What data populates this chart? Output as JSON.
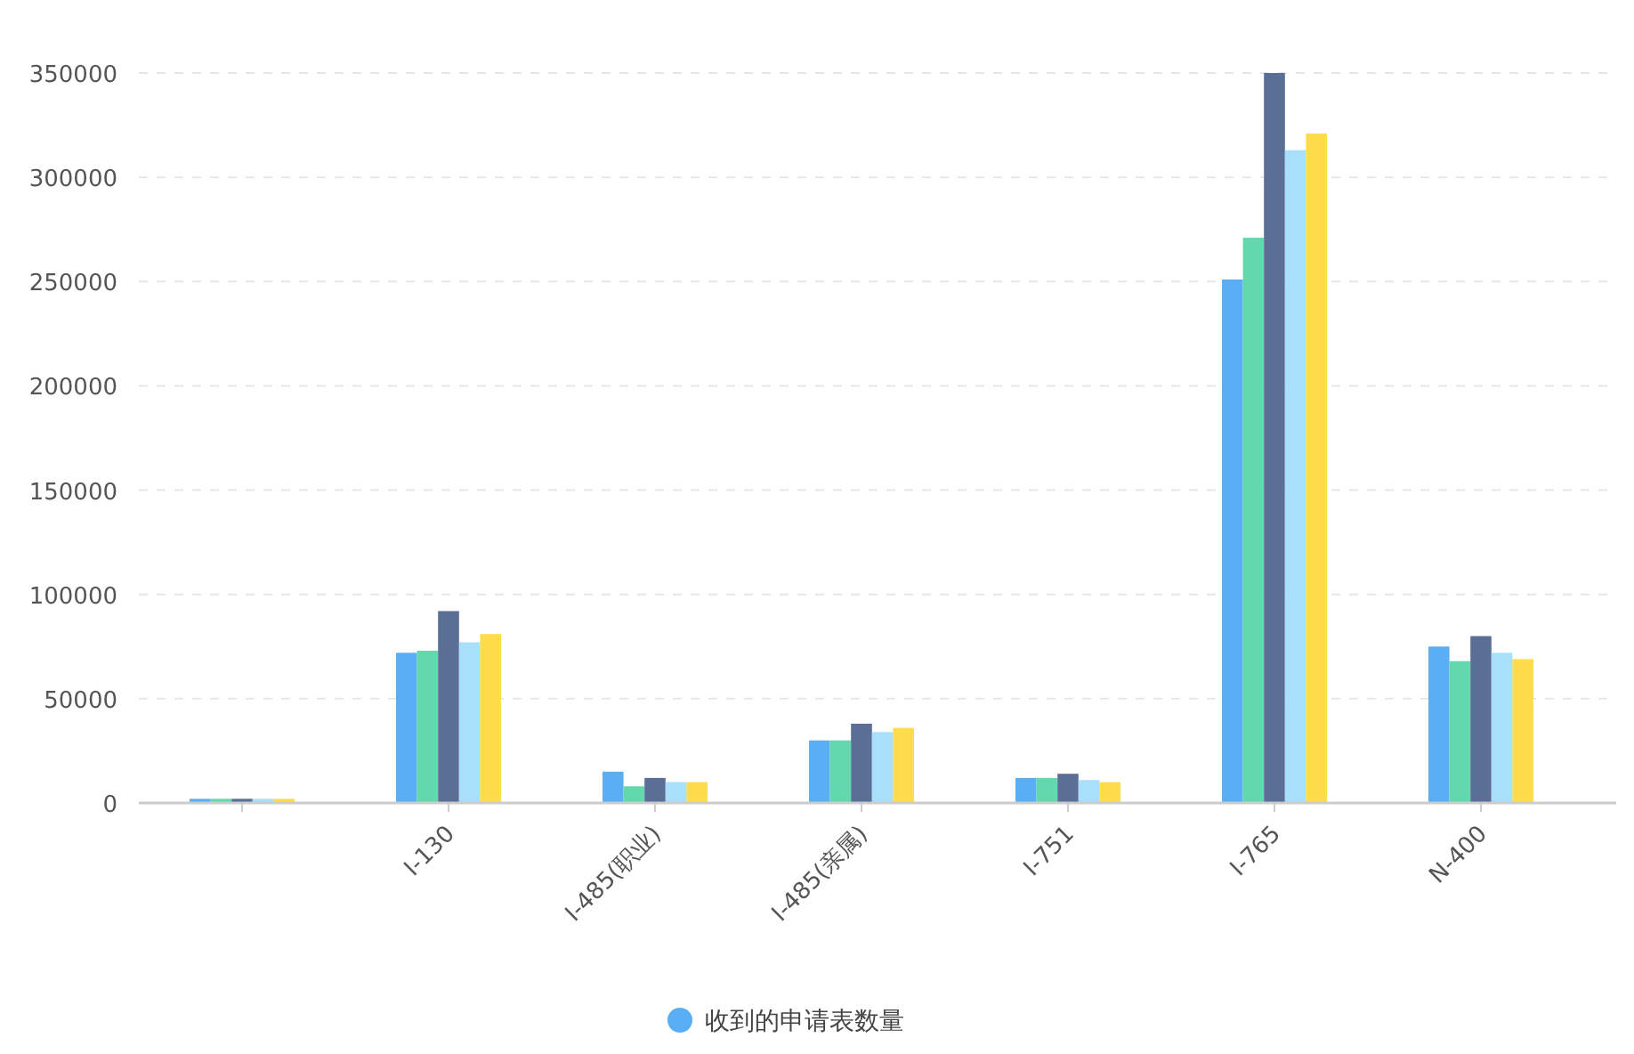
{
  "chart_data": {
    "type": "bar",
    "categories": [
      null,
      "I-130",
      "I-485(职业)",
      "I-485(亲属)",
      "I-751",
      "I-765",
      "N-400"
    ],
    "series": [
      {
        "name": "收到的申请表数量",
        "color": "#5aaef3",
        "values": [
          2000,
          72000,
          15000,
          30000,
          12000,
          251000,
          75000
        ]
      },
      {
        "color": "#62d9ad",
        "values": [
          2000,
          73000,
          8000,
          30000,
          12000,
          271000,
          68000
        ]
      },
      {
        "color": "#5b6e96",
        "values": [
          2000,
          92000,
          12000,
          38000,
          14000,
          350000,
          80000
        ]
      },
      {
        "color": "#a8dffa",
        "values": [
          2000,
          77000,
          10000,
          34000,
          11000,
          313000,
          72000
        ]
      },
      {
        "color": "#ffdc4c",
        "values": [
          2000,
          81000,
          10000,
          36000,
          10000,
          321000,
          69000
        ]
      }
    ],
    "ylim": [
      0,
      350000
    ],
    "yticks": [
      0,
      50000,
      100000,
      150000,
      200000,
      250000,
      300000,
      350000
    ],
    "grid": "y",
    "legend": "bottom"
  }
}
